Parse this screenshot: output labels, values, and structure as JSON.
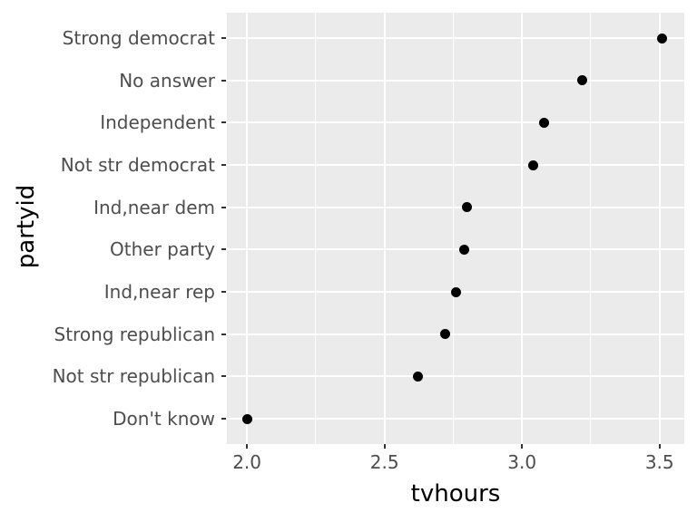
{
  "figure": {
    "background_color": "#FFFFFF",
    "panel_background_color": "#EBEBEB",
    "grid_color": "#FFFFFF",
    "point_color": "#000000",
    "axis_text_color": "#4D4D4D",
    "axis_title_color": "#000000",
    "tick_mark_color": "#333333"
  },
  "chart_data": {
    "type": "scatter",
    "title": "",
    "xlabel": "tvhours",
    "ylabel": "partyid",
    "legend_position": "none",
    "grid": true,
    "categories": [
      "Strong democrat",
      "No answer",
      "Independent",
      "Not str democrat",
      "Ind,near dem",
      "Other party",
      "Ind,near rep",
      "Strong republican",
      "Not str republican",
      "Don't know"
    ],
    "values": [
      3.51,
      3.22,
      3.08,
      3.04,
      2.8,
      2.79,
      2.76,
      2.72,
      2.62,
      2.0
    ],
    "x_ticks": [
      2.0,
      2.5,
      3.0,
      3.5
    ],
    "x_tick_labels": [
      "2.0",
      "2.5",
      "3.0",
      "3.5"
    ],
    "x_minor_ticks": [
      2.25,
      2.75,
      3.25
    ],
    "xlim": [
      1.927,
      3.59
    ]
  }
}
